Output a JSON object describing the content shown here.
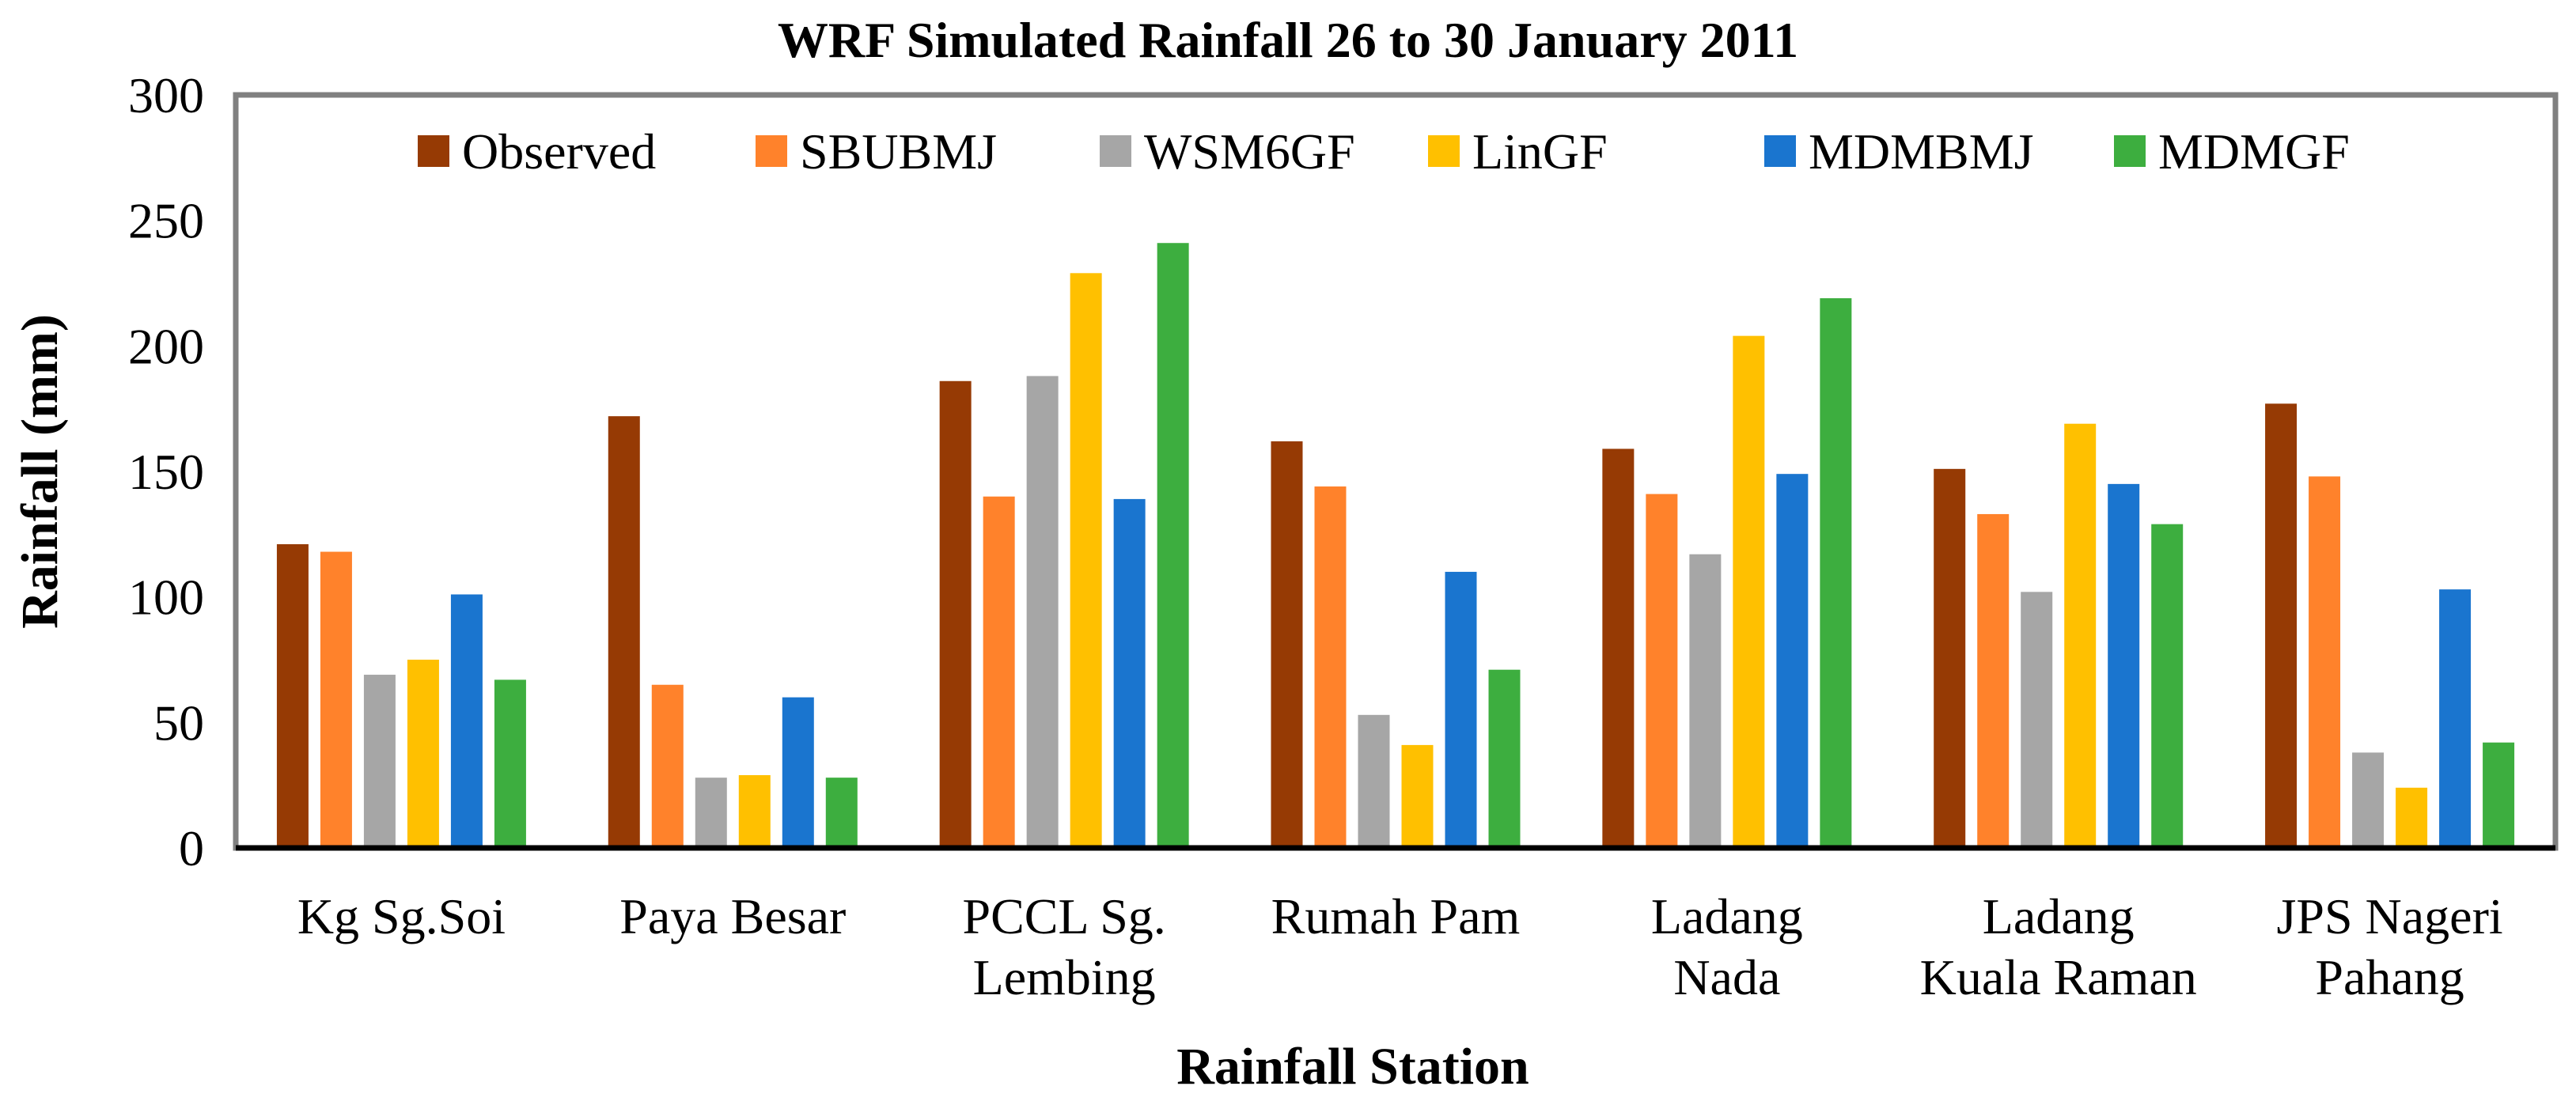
{
  "chart_data": {
    "type": "bar",
    "title": "WRF Simulated Rainfall 26 to 30 January 2011",
    "xlabel": "Rainfall Station",
    "ylabel": "Rainfall (mm)",
    "ylim": [
      0,
      300
    ],
    "yticks": [
      0,
      50,
      100,
      150,
      200,
      250,
      300
    ],
    "grid": false,
    "legend_position": "top",
    "categories": [
      [
        "Kg Sg.Soi"
      ],
      [
        "Paya Besar"
      ],
      [
        "PCCL Sg.",
        "Lembing"
      ],
      [
        "Rumah Pam"
      ],
      [
        "Ladang",
        "Nada"
      ],
      [
        "Ladang",
        "Kuala Raman"
      ],
      [
        "JPS Nageri",
        "Pahang"
      ]
    ],
    "series": [
      {
        "name": "Observed",
        "color": "#963A04",
        "values": [
          121,
          172,
          186,
          162,
          159,
          151,
          177
        ]
      },
      {
        "name": "SBUBMJ",
        "color": "#FF822B",
        "values": [
          118,
          65,
          140,
          144,
          141,
          133,
          148
        ]
      },
      {
        "name": "WSM6GF",
        "color": "#A6A6A6",
        "values": [
          69,
          28,
          188,
          53,
          117,
          102,
          38
        ]
      },
      {
        "name": "LinGF",
        "color": "#FFC000",
        "values": [
          75,
          29,
          229,
          41,
          204,
          169,
          24
        ]
      },
      {
        "name": "MDMBMJ",
        "color": "#1A75CF",
        "values": [
          101,
          60,
          139,
          110,
          149,
          145,
          103
        ]
      },
      {
        "name": "MDMGF",
        "color": "#3DAE3F",
        "values": [
          67,
          28,
          241,
          71,
          219,
          129,
          42
        ]
      }
    ]
  }
}
